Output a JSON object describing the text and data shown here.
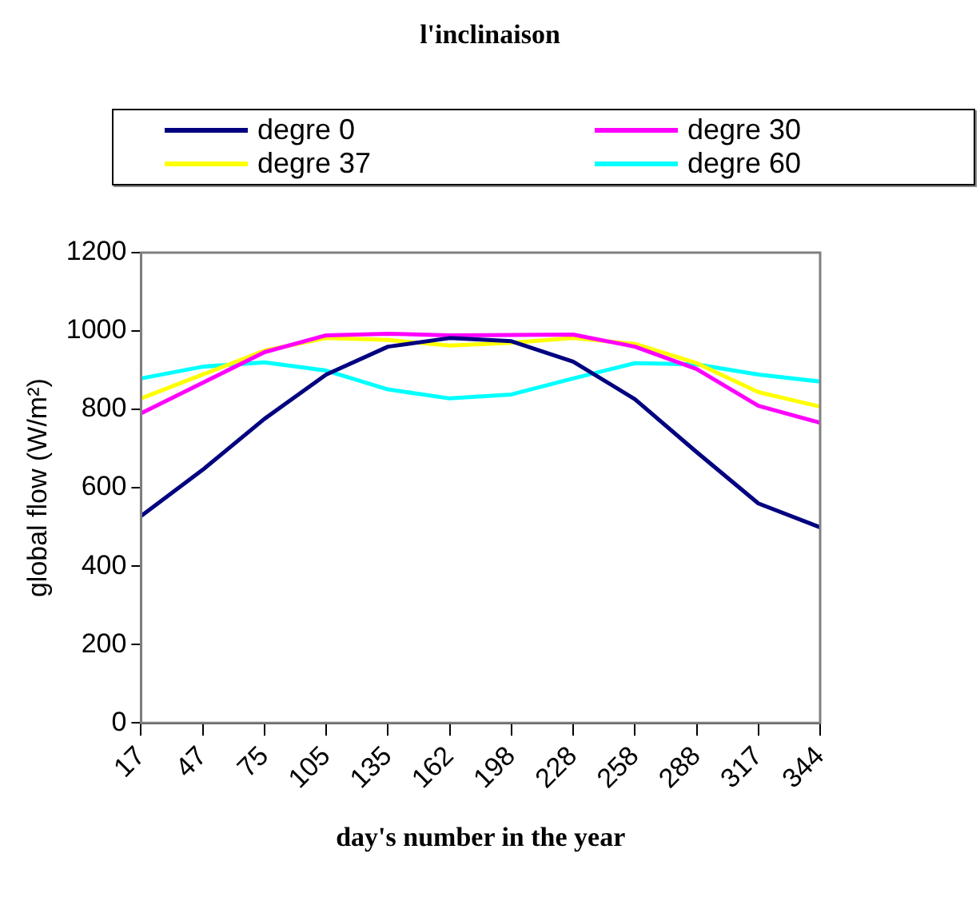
{
  "chart_data": {
    "type": "line",
    "title": "l'inclinaison",
    "xlabel": "day's number in the year",
    "ylabel": "global flow (W/m²)",
    "categories": [
      "17",
      "47",
      "75",
      "105",
      "135",
      "162",
      "198",
      "228",
      "258",
      "288",
      "317",
      "344"
    ],
    "series": [
      {
        "name": "degre 0",
        "color": "#000080",
        "values": [
          528,
          646,
          776,
          889,
          960,
          982,
          974,
          922,
          826,
          691,
          560,
          499
        ]
      },
      {
        "name": "degre 30",
        "color": "#ff00ff",
        "values": [
          790,
          868,
          946,
          989,
          993,
          989,
          990,
          991,
          960,
          903,
          809,
          766
        ]
      },
      {
        "name": "degre 37",
        "color": "#ffff00",
        "values": [
          828,
          889,
          950,
          982,
          977,
          963,
          970,
          982,
          967,
          918,
          844,
          807
        ]
      },
      {
        "name": "degre 60",
        "color": "#00ffff",
        "values": [
          879,
          909,
          920,
          899,
          851,
          828,
          838,
          879,
          918,
          915,
          889,
          871
        ]
      }
    ],
    "ylim": [
      0,
      1200
    ],
    "yticks": [
      0,
      200,
      400,
      600,
      800,
      1000,
      1200
    ],
    "legend": "top",
    "marker": "none",
    "line_style": "solid"
  }
}
